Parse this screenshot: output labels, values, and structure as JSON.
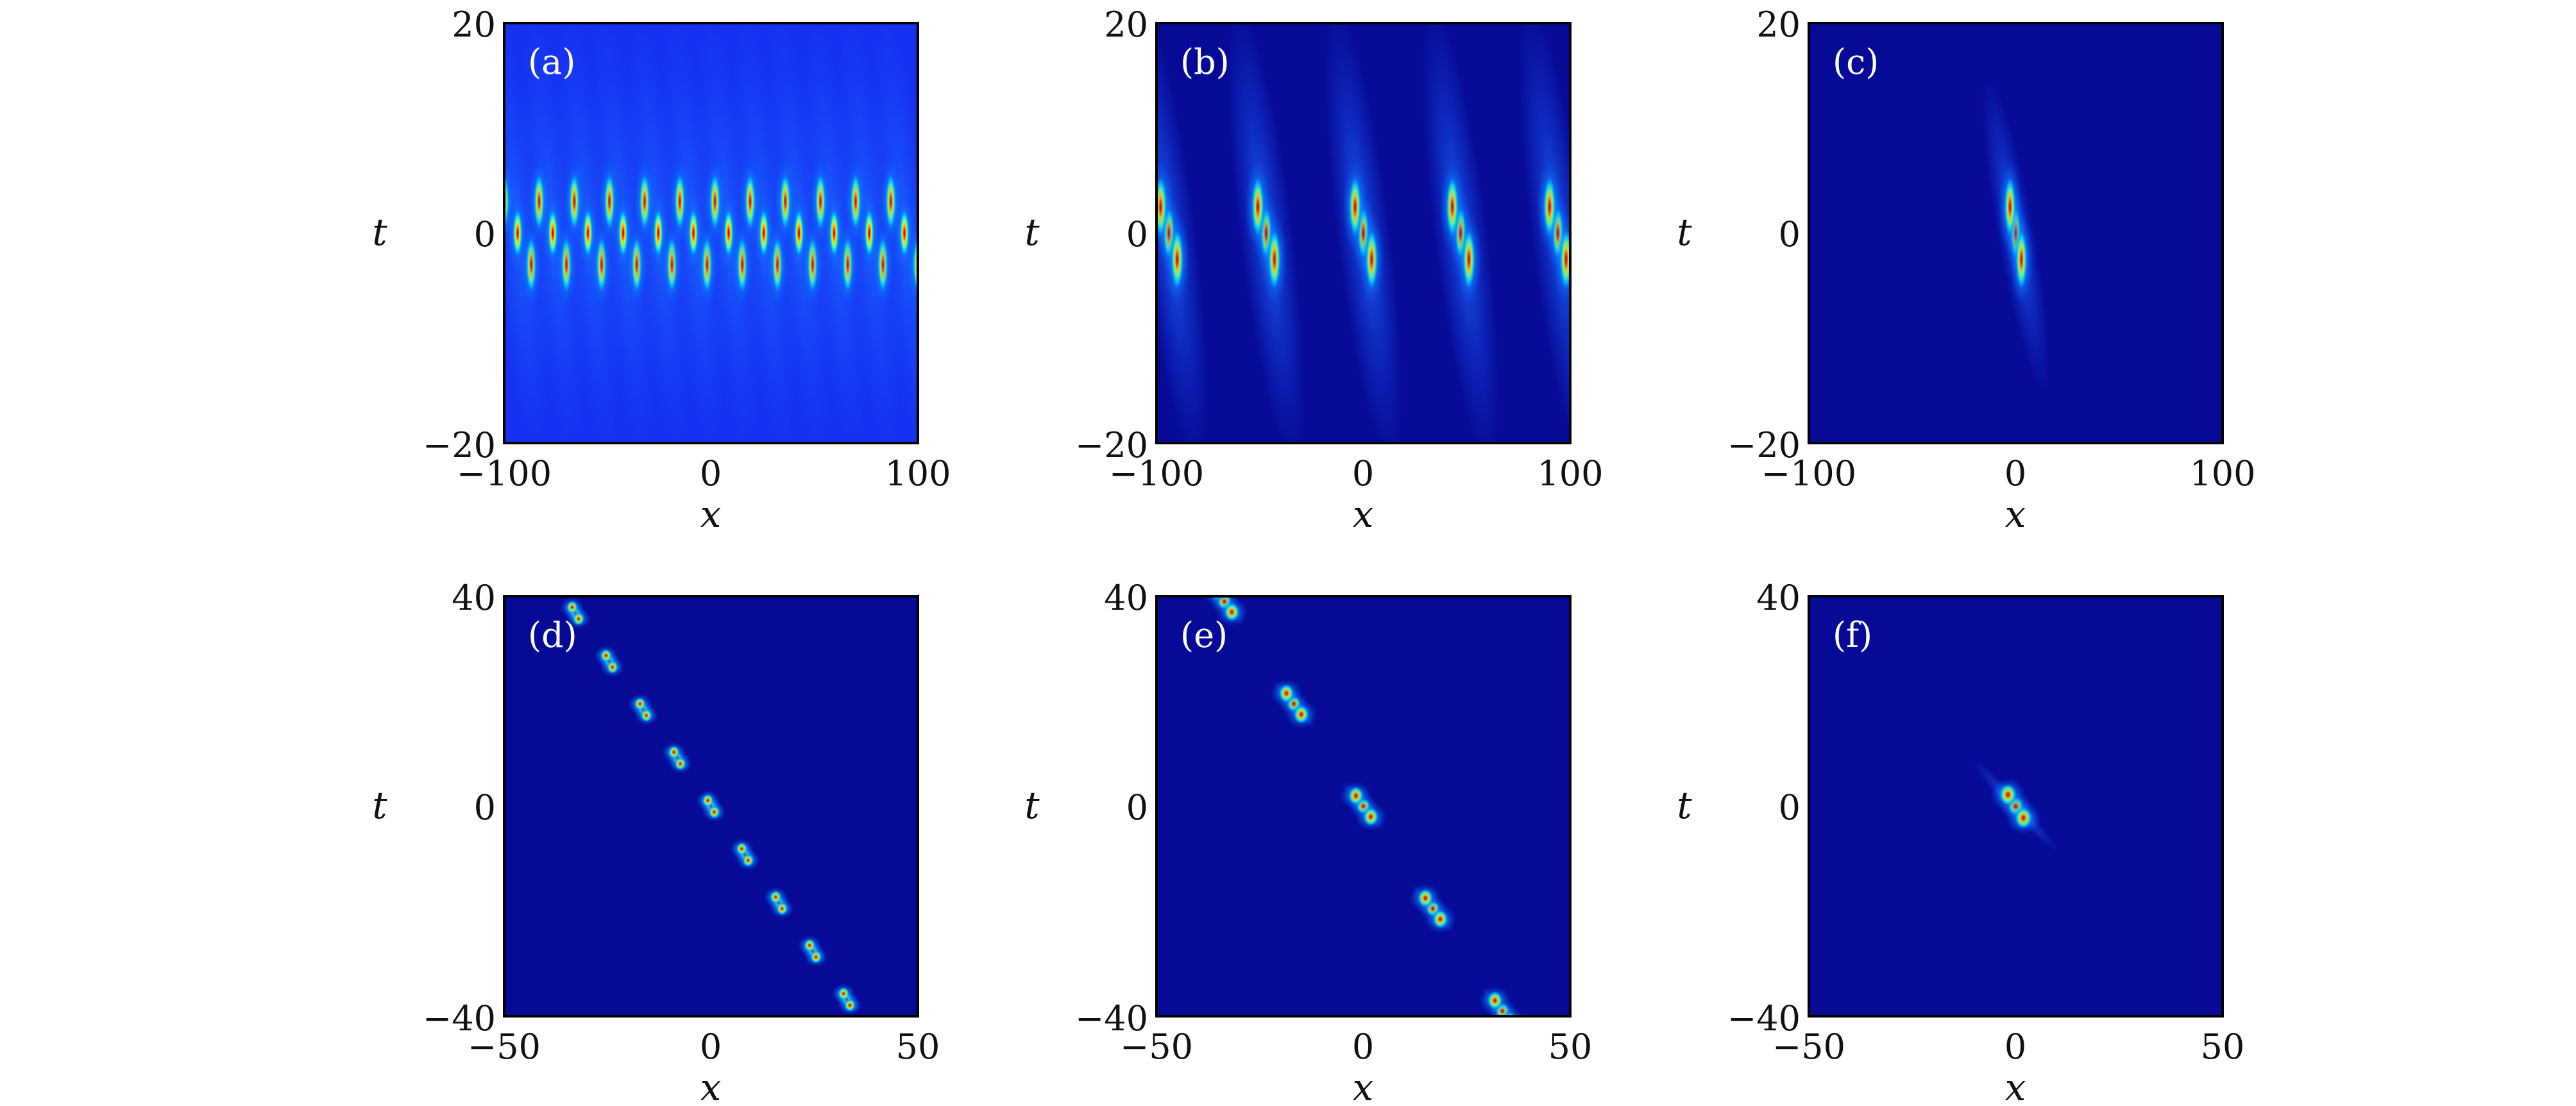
{
  "chart_data": [
    {
      "panel": "(a)",
      "type": "heatmap",
      "xlabel": "x",
      "ylabel": "t",
      "xlim": [
        -100,
        100
      ],
      "ylim": [
        -20,
        20
      ],
      "xticks": [
        "−100",
        "0",
        "100"
      ],
      "yticks": [
        "20",
        "0",
        "−20"
      ],
      "background": "#1530f0",
      "structure": {
        "kind": "periodic",
        "count": 12,
        "spacing": 17,
        "tilt": -2.2,
        "span_t": 20,
        "spots": [
          0,
          -3,
          3
        ],
        "spot_size": [
          2.2,
          2.6
        ]
      }
    },
    {
      "panel": "(b)",
      "type": "heatmap",
      "xlabel": "x",
      "ylabel": "t",
      "xlim": [
        -100,
        100
      ],
      "ylim": [
        -20,
        20
      ],
      "xticks": [
        "−100",
        "0",
        "100"
      ],
      "yticks": [
        "20",
        "0",
        "−20"
      ],
      "background": "#060a96",
      "structure": {
        "kind": "periodic",
        "count": 5,
        "spacing": 47,
        "tilt": -1.6,
        "span_t": 21,
        "spots": [
          0,
          -2.5,
          2.5
        ],
        "spot_size": [
          2.6,
          2.8
        ]
      }
    },
    {
      "panel": "(c)",
      "type": "heatmap",
      "xlabel": "x",
      "ylabel": "t",
      "xlim": [
        -100,
        100
      ],
      "ylim": [
        -20,
        20
      ],
      "xticks": [
        "−100",
        "0",
        "100"
      ],
      "yticks": [
        "20",
        "0",
        "−20"
      ],
      "background": "#060a96",
      "structure": {
        "kind": "single",
        "count": 1,
        "spacing": 0,
        "tilt": -1.1,
        "span_t": 15,
        "spots": [
          0,
          -2.5,
          2.5
        ],
        "spot_size": [
          2.4,
          2.8
        ]
      }
    },
    {
      "panel": "(d)",
      "type": "heatmap",
      "xlabel": "x",
      "ylabel": "t",
      "xlim": [
        -50,
        50
      ],
      "ylim": [
        -40,
        40
      ],
      "xticks": [
        "−50",
        "0",
        "50"
      ],
      "yticks": [
        "40",
        "0",
        "−40"
      ],
      "background": "#060a96",
      "structure": {
        "kind": "diagonal",
        "count": 9,
        "step_x": 8.2,
        "step_t": -9.2,
        "tilt": -0.7,
        "span_t": 2.5,
        "spots": [
          0,
          -1.1,
          1.1
        ],
        "spot_size": [
          1.2,
          1.2
        ]
      }
    },
    {
      "panel": "(e)",
      "type": "heatmap",
      "xlabel": "x",
      "ylabel": "t",
      "xlim": [
        -50,
        50
      ],
      "ylim": [
        -40,
        40
      ],
      "xticks": [
        "−50",
        "0",
        "50"
      ],
      "yticks": [
        "40",
        "0",
        "−40"
      ],
      "background": "#060a96",
      "structure": {
        "kind": "diagonal",
        "count": 5,
        "step_x": 16.8,
        "step_t": -19.5,
        "tilt": -0.9,
        "span_t": 5,
        "spots": [
          0,
          -2,
          2
        ],
        "spot_size": [
          1.6,
          1.7
        ]
      }
    },
    {
      "panel": "(f)",
      "type": "heatmap",
      "xlabel": "x",
      "ylabel": "t",
      "xlim": [
        -50,
        50
      ],
      "ylim": [
        -40,
        40
      ],
      "xticks": [
        "−50",
        "0",
        "50"
      ],
      "yticks": [
        "40",
        "0",
        "−40"
      ],
      "background": "#060a96",
      "structure": {
        "kind": "single",
        "count": 1,
        "spacing": 0,
        "tilt": -0.85,
        "span_t": 10,
        "spots": [
          0,
          -2.2,
          2.2
        ],
        "spot_size": [
          1.8,
          2.0
        ]
      }
    }
  ]
}
